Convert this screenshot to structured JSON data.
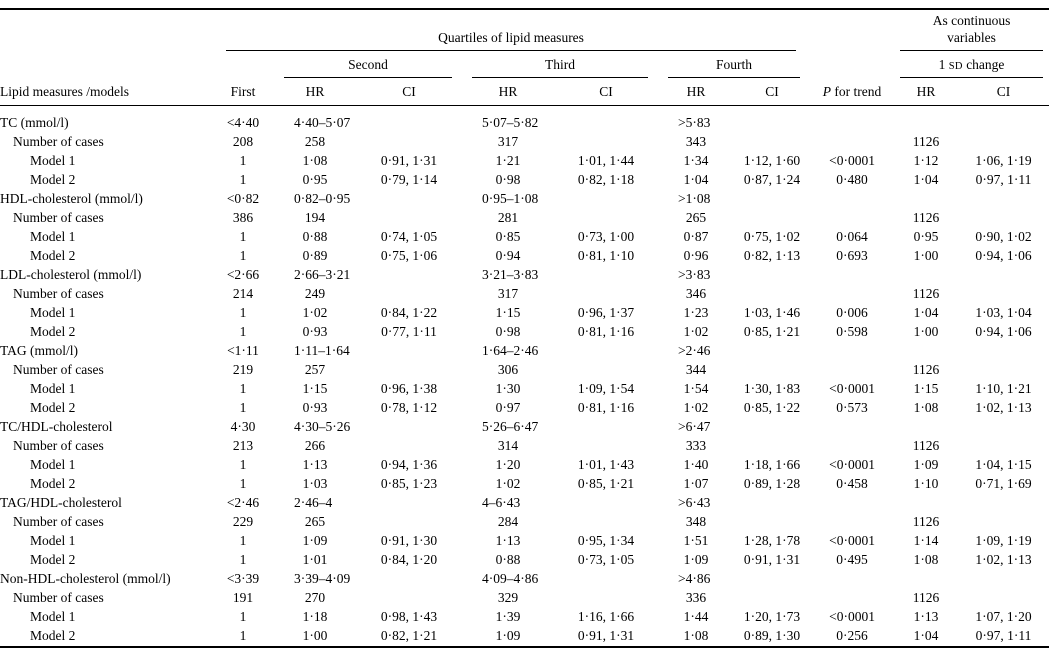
{
  "table": {
    "group_headers": {
      "quartiles": "Quartiles of lipid measures",
      "continuous_line1": "As continuous",
      "continuous_line2": "variables"
    },
    "subgroup_headers": {
      "second": "Second",
      "third": "Third",
      "fourth": "Fourth",
      "sd_prefix": "1 ",
      "sd": "SD",
      "sd_suffix": " change"
    },
    "columns": {
      "label": "Lipid measures /models",
      "first": "First",
      "hr": "HR",
      "ci": "CI",
      "p_italic": "P",
      "p_rest": " for trend"
    },
    "cases_label": "Number of cases",
    "sections": [
      {
        "name": "TC (mmol/l)",
        "ranges": {
          "first": "<4·40",
          "second": "4·40–5·07",
          "third": "5·07–5·82",
          "fourth": ">5·83"
        },
        "cases": {
          "first": "208",
          "second": "258",
          "third": "317",
          "fourth": "343",
          "continuous": "1126"
        },
        "models": [
          {
            "label": "Model 1",
            "first": "1",
            "hr2": "1·08",
            "ci2": "0·91, 1·31",
            "hr3": "1·21",
            "ci3": "1·01, 1·44",
            "hr4": "1·34",
            "ci4": "1·12, 1·60",
            "p": "<0·0001",
            "hrc": "1·12",
            "cic": "1·06, 1·19"
          },
          {
            "label": "Model 2",
            "first": "1",
            "hr2": "0·95",
            "ci2": "0·79, 1·14",
            "hr3": "0·98",
            "ci3": "0·82, 1·18",
            "hr4": "1·04",
            "ci4": "0·87, 1·24",
            "p": "0·480",
            "hrc": "1·04",
            "cic": "0·97, 1·11"
          }
        ]
      },
      {
        "name": "HDL-cholesterol (mmol/l)",
        "ranges": {
          "first": "<0·82",
          "second": "0·82–0·95",
          "third": "0·95–1·08",
          "fourth": ">1·08"
        },
        "cases": {
          "first": "386",
          "second": "194",
          "third": "281",
          "fourth": "265",
          "continuous": "1126"
        },
        "models": [
          {
            "label": "Model 1",
            "first": "1",
            "hr2": "0·88",
            "ci2": "0·74, 1·05",
            "hr3": "0·85",
            "ci3": "0·73, 1·00",
            "hr4": "0·87",
            "ci4": "0·75, 1·02",
            "p": "0·064",
            "hrc": "0·95",
            "cic": "0·90, 1·02"
          },
          {
            "label": "Model 2",
            "first": "1",
            "hr2": "0·89",
            "ci2": "0·75, 1·06",
            "hr3": "0·94",
            "ci3": "0·81, 1·10",
            "hr4": "0·96",
            "ci4": "0·82, 1·13",
            "p": "0·693",
            "hrc": "1·00",
            "cic": "0·94, 1·06"
          }
        ]
      },
      {
        "name": "LDL-cholesterol (mmol/l)",
        "ranges": {
          "first": "<2·66",
          "second": "2·66–3·21",
          "third": "3·21–3·83",
          "fourth": ">3·83"
        },
        "cases": {
          "first": "214",
          "second": "249",
          "third": "317",
          "fourth": "346",
          "continuous": "1126"
        },
        "models": [
          {
            "label": "Model 1",
            "first": "1",
            "hr2": "1·02",
            "ci2": "0·84, 1·22",
            "hr3": "1·15",
            "ci3": "0·96, 1·37",
            "hr4": "1·23",
            "ci4": "1·03, 1·46",
            "p": "0·006",
            "hrc": "1·04",
            "cic": "1·03, 1·04"
          },
          {
            "label": "Model 2",
            "first": "1",
            "hr2": "0·93",
            "ci2": "0·77, 1·11",
            "hr3": "0·98",
            "ci3": "0·81, 1·16",
            "hr4": "1·02",
            "ci4": "0·85, 1·21",
            "p": "0·598",
            "hrc": "1·00",
            "cic": "0·94, 1·06"
          }
        ]
      },
      {
        "name": "TAG (mmol/l)",
        "ranges": {
          "first": "<1·11",
          "second": "1·11–1·64",
          "third": "1·64–2·46",
          "fourth": ">2·46"
        },
        "cases": {
          "first": "219",
          "second": "257",
          "third": "306",
          "fourth": "344",
          "continuous": "1126"
        },
        "models": [
          {
            "label": "Model 1",
            "first": "1",
            "hr2": "1·15",
            "ci2": "0·96, 1·38",
            "hr3": "1·30",
            "ci3": "1·09, 1·54",
            "hr4": "1·54",
            "ci4": "1·30, 1·83",
            "p": "<0·0001",
            "hrc": "1·15",
            "cic": "1·10, 1·21"
          },
          {
            "label": "Model 2",
            "first": "1",
            "hr2": "0·93",
            "ci2": "0·78, 1·12",
            "hr3": "0·97",
            "ci3": "0·81, 1·16",
            "hr4": "1·02",
            "ci4": "0·85, 1·22",
            "p": "0·573",
            "hrc": "1·08",
            "cic": "1·02, 1·13"
          }
        ]
      },
      {
        "name": "TC/HDL-cholesterol",
        "ranges": {
          "first": "4·30",
          "second": "4·30–5·26",
          "third": "5·26–6·47",
          "fourth": ">6·47"
        },
        "cases": {
          "first": "213",
          "second": "266",
          "third": "314",
          "fourth": "333",
          "continuous": "1126"
        },
        "models": [
          {
            "label": "Model 1",
            "first": "1",
            "hr2": "1·13",
            "ci2": "0·94, 1·36",
            "hr3": "1·20",
            "ci3": "1·01, 1·43",
            "hr4": "1·40",
            "ci4": "1·18, 1·66",
            "p": "<0·0001",
            "hrc": "1·09",
            "cic": "1·04, 1·15"
          },
          {
            "label": "Model 2",
            "first": "1",
            "hr2": "1·03",
            "ci2": "0·85, 1·23",
            "hr3": "1·02",
            "ci3": "0·85, 1·21",
            "hr4": "1·07",
            "ci4": "0·89, 1·28",
            "p": "0·458",
            "hrc": "1·10",
            "cic": "0·71, 1·69"
          }
        ]
      },
      {
        "name": "TAG/HDL-cholesterol",
        "ranges": {
          "first": "<2·46",
          "second": "2·46–4",
          "third": "4–6·43",
          "fourth": ">6·43"
        },
        "cases": {
          "first": "229",
          "second": "265",
          "third": "284",
          "fourth": "348",
          "continuous": "1126"
        },
        "models": [
          {
            "label": "Model 1",
            "first": "1",
            "hr2": "1·09",
            "ci2": "0·91, 1·30",
            "hr3": "1·13",
            "ci3": "0·95, 1·34",
            "hr4": "1·51",
            "ci4": "1·28, 1·78",
            "p": "<0·0001",
            "hrc": "1·14",
            "cic": "1·09, 1·19"
          },
          {
            "label": "Model 2",
            "first": "1",
            "hr2": "1·01",
            "ci2": "0·84, 1·20",
            "hr3": "0·88",
            "ci3": "0·73, 1·05",
            "hr4": "1·09",
            "ci4": "0·91, 1·31",
            "p": "0·495",
            "hrc": "1·08",
            "cic": "1·02, 1·13"
          }
        ]
      },
      {
        "name": "Non-HDL-cholesterol (mmol/l)",
        "ranges": {
          "first": "<3·39",
          "second": "3·39–4·09",
          "third": "4·09–4·86",
          "fourth": ">4·86"
        },
        "cases": {
          "first": "191",
          "second": "270",
          "third": "329",
          "fourth": "336",
          "continuous": "1126"
        },
        "models": [
          {
            "label": "Model 1",
            "first": "1",
            "hr2": "1·18",
            "ci2": "0·98, 1·43",
            "hr3": "1·39",
            "ci3": "1·16, 1·66",
            "hr4": "1·44",
            "ci4": "1·20, 1·73",
            "p": "<0·0001",
            "hrc": "1·13",
            "cic": "1·07, 1·20"
          },
          {
            "label": "Model 2",
            "first": "1",
            "hr2": "1·00",
            "ci2": "0·82, 1·21",
            "hr3": "1·09",
            "ci3": "0·91, 1·31",
            "hr4": "1·08",
            "ci4": "0·89, 1·30",
            "p": "0·256",
            "hrc": "1·04",
            "cic": "0·97, 1·11"
          }
        ]
      }
    ]
  }
}
